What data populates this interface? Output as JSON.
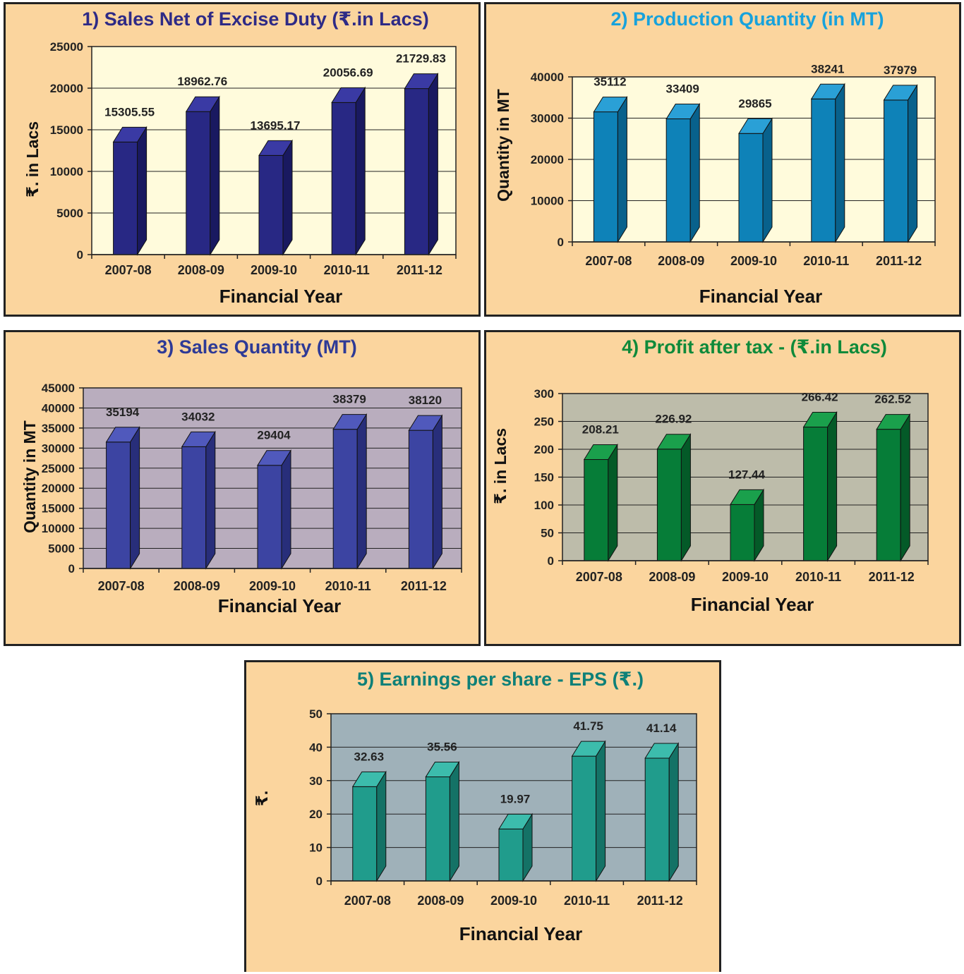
{
  "chart_data": [
    {
      "type": "bar",
      "title": "1)  Sales Net of Excise Duty (₹.in Lacs)",
      "xlabel": "Financial Year",
      "ylabel": "₹. in Lacs",
      "categories": [
        "2007-08",
        "2008-09",
        "2009-10",
        "2010-11",
        "2011-12"
      ],
      "values": [
        15305.55,
        18962.76,
        13695.17,
        20056.69,
        21729.83
      ],
      "value_labels": [
        "15305.55",
        "18962.76",
        "13695.17",
        "20056.69",
        "21729.83"
      ],
      "ylim": [
        0,
        25000
      ],
      "yticks": [
        0,
        5000,
        10000,
        15000,
        20000,
        25000
      ],
      "grid": true,
      "colors": {
        "title": "#2e2a86",
        "plot_bg": "#fffbdc",
        "bar_front": "#282884",
        "bar_side": "#191960",
        "bar_top": "#3a3aa4"
      }
    },
    {
      "type": "bar",
      "title": "2)  Production Quantity (in MT)",
      "xlabel": "Financial Year",
      "ylabel": "Quantity in MT",
      "categories": [
        "2007-08",
        "2008-09",
        "2009-10",
        "2010-11",
        "2011-12"
      ],
      "values": [
        35112,
        33409,
        29865,
        38241,
        37979
      ],
      "value_labels": [
        "35112",
        "33409",
        "29865",
        "38241",
        "37979"
      ],
      "ylim": [
        0,
        40000
      ],
      "yticks": [
        0,
        10000,
        20000,
        30000,
        40000
      ],
      "grid": true,
      "colors": {
        "title": "#17a2dc",
        "plot_bg": "#fffbdc",
        "bar_front": "#0e82b8",
        "bar_side": "#08618c",
        "bar_top": "#2aa0d6"
      }
    },
    {
      "type": "bar",
      "title": "3)  Sales Quantity (MT)",
      "xlabel": "Financial Year",
      "ylabel": "Quantity in MT",
      "categories": [
        "2007-08",
        "2008-09",
        "2009-10",
        "2010-11",
        "2011-12"
      ],
      "values": [
        35194,
        34032,
        29404,
        38379,
        38120
      ],
      "value_labels": [
        "35194",
        "34032",
        "29404",
        "38379",
        "38120"
      ],
      "ylim": [
        0,
        45000
      ],
      "yticks": [
        0,
        5000,
        10000,
        15000,
        20000,
        25000,
        30000,
        35000,
        40000,
        45000
      ],
      "grid": true,
      "colors": {
        "title": "#2e3a96",
        "plot_bg": "#b9adbe",
        "bar_front": "#3c44a2",
        "bar_side": "#282e7a",
        "bar_top": "#5059bc"
      }
    },
    {
      "type": "bar",
      "title": "4)  Profit after tax -  (₹.in Lacs)",
      "xlabel": "Financial Year",
      "ylabel": "₹. in Lacs",
      "categories": [
        "2007-08",
        "2008-09",
        "2009-10",
        "2010-11",
        "2011-12"
      ],
      "values": [
        208.21,
        226.92,
        127.44,
        266.42,
        262.52
      ],
      "value_labels": [
        "208.21",
        "226.92",
        "127.44",
        "266.42",
        "262.52"
      ],
      "ylim": [
        0,
        300
      ],
      "yticks": [
        0,
        50,
        100,
        150,
        200,
        250,
        300
      ],
      "grid": true,
      "colors": {
        "title": "#0f8a3a",
        "plot_bg": "#bdbcaa",
        "bar_front": "#067d38",
        "bar_side": "#045a28",
        "bar_top": "#1aa04c"
      }
    },
    {
      "type": "bar",
      "title": "5)  Earnings per share - EPS (₹.)",
      "xlabel": "Financial Year",
      "ylabel": "₹.",
      "categories": [
        "2007-08",
        "2008-09",
        "2009-10",
        "2010-11",
        "2011-12"
      ],
      "values": [
        32.63,
        35.56,
        19.97,
        41.75,
        41.14
      ],
      "value_labels": [
        "32.63",
        "35.56",
        "19.97",
        "41.75",
        "41.14"
      ],
      "ylim": [
        0,
        50
      ],
      "yticks": [
        0,
        10,
        20,
        30,
        40,
        50
      ],
      "grid": true,
      "colors": {
        "title": "#0e8078",
        "plot_bg": "#9fb1b9",
        "bar_front": "#209c8c",
        "bar_side": "#147266",
        "bar_top": "#3cbcac"
      }
    }
  ]
}
